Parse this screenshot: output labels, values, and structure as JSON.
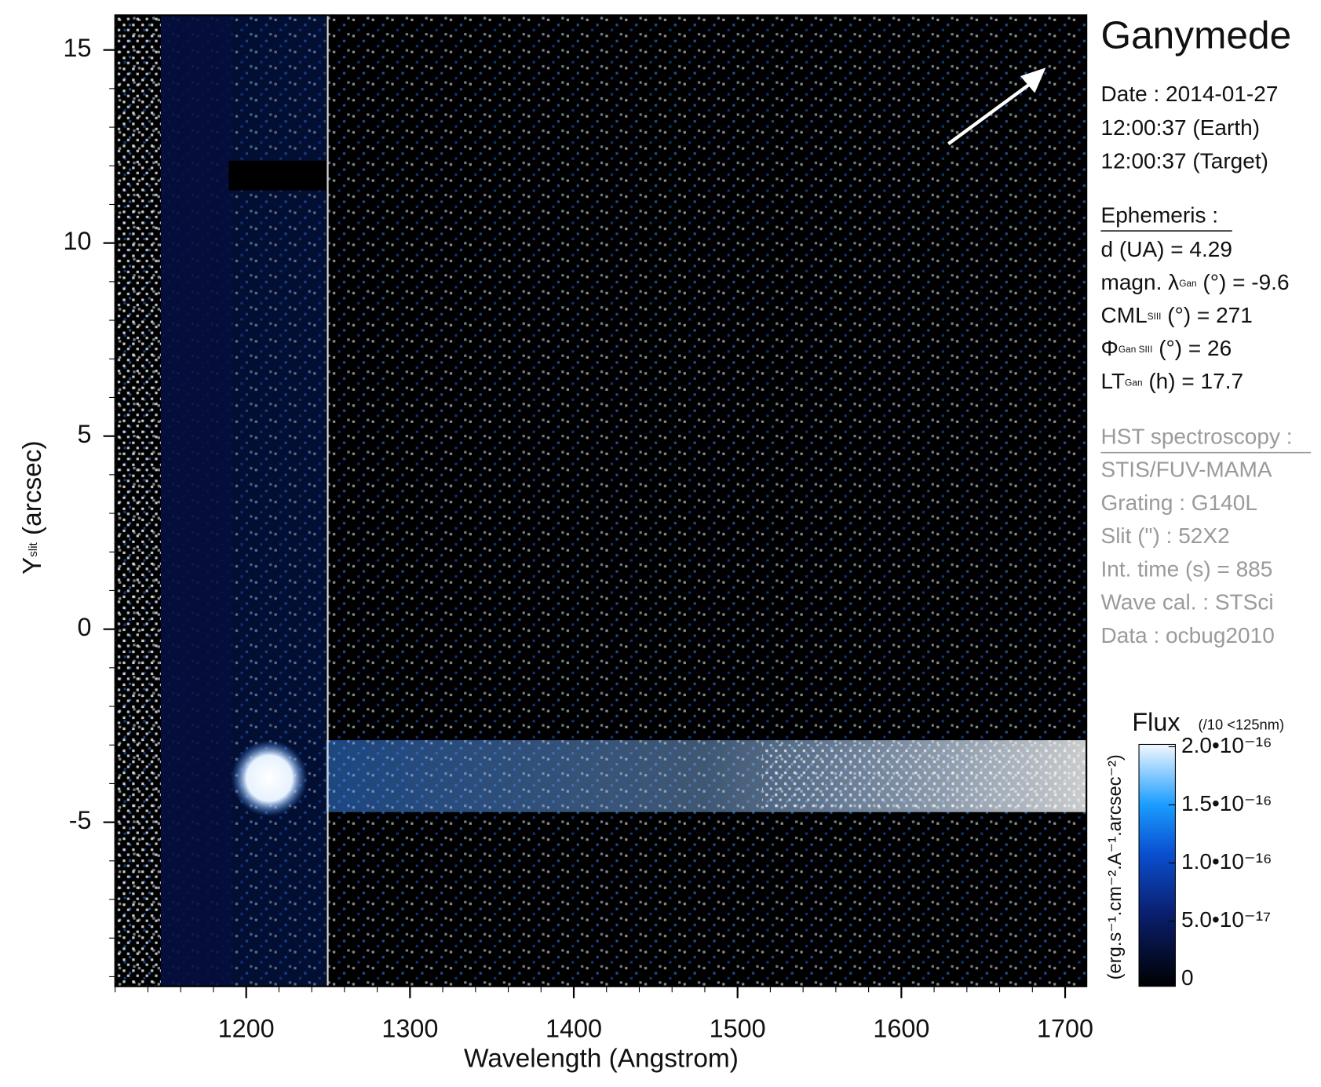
{
  "chart_data": {
    "type": "heatmap",
    "title": "Ganymede",
    "xlabel": "Wavelength (Angstrom)",
    "ylabel": {
      "main": "Y",
      "sub": "slit",
      "rest": " (arcsec)"
    },
    "xlim": [
      1120,
      1713
    ],
    "ylim": [
      -9.25,
      15.9
    ],
    "xticks": [
      1200,
      1300,
      1400,
      1500,
      1600,
      1700
    ],
    "yticks": [
      15,
      10,
      5,
      0,
      -5
    ],
    "minor_ticks": {
      "x": 20,
      "y": 1
    },
    "colorbar": {
      "title": "Flux",
      "note": "(/10 <125nm)",
      "label": "(erg.s⁻¹.cm⁻².A⁻¹.arcsec⁻²)",
      "lim": [
        -6e-18,
        2.02e-16
      ],
      "ticks": [
        0,
        {
          "value": 5e-17,
          "label": "5.0•10⁻¹⁷"
        },
        {
          "value": 1e-16,
          "label": "1.0•10⁻¹⁶"
        },
        {
          "value": 1.5e-16,
          "label": "1.5•10⁻¹⁶"
        },
        {
          "value": 2e-16,
          "label": "2.0•10⁻¹⁶"
        }
      ]
    }
  },
  "info": {
    "date": [
      "Date : 2014-01-27",
      "12:00:37 (Earth)",
      "12:00:37 (Target)"
    ],
    "ephemeris_heading": "Ephemeris :",
    "ephemeris": [
      {
        "label": "d (UA)     = 4.29"
      },
      {
        "label": "magn. λ",
        "sub": "Gan",
        "rest": " (°)  = -9.6"
      },
      {
        "label": "CML",
        "sub": "SIII",
        "rest": " (°) = 271"
      },
      {
        "label": "Φ",
        "sub": "Gan SIII",
        "rest": " (°) = 26"
      },
      {
        "label": "LT",
        "sub": "Gan",
        "rest": " (h) = 17.7"
      }
    ],
    "instrument_heading": "HST spectroscopy :",
    "instrument": [
      "STIS/FUV-MAMA",
      "Grating : G140L",
      "Slit (\") : 52X2",
      "Int. time (s) = 885",
      "Wave cal. : STSci",
      "Data : ocbug2010"
    ]
  }
}
